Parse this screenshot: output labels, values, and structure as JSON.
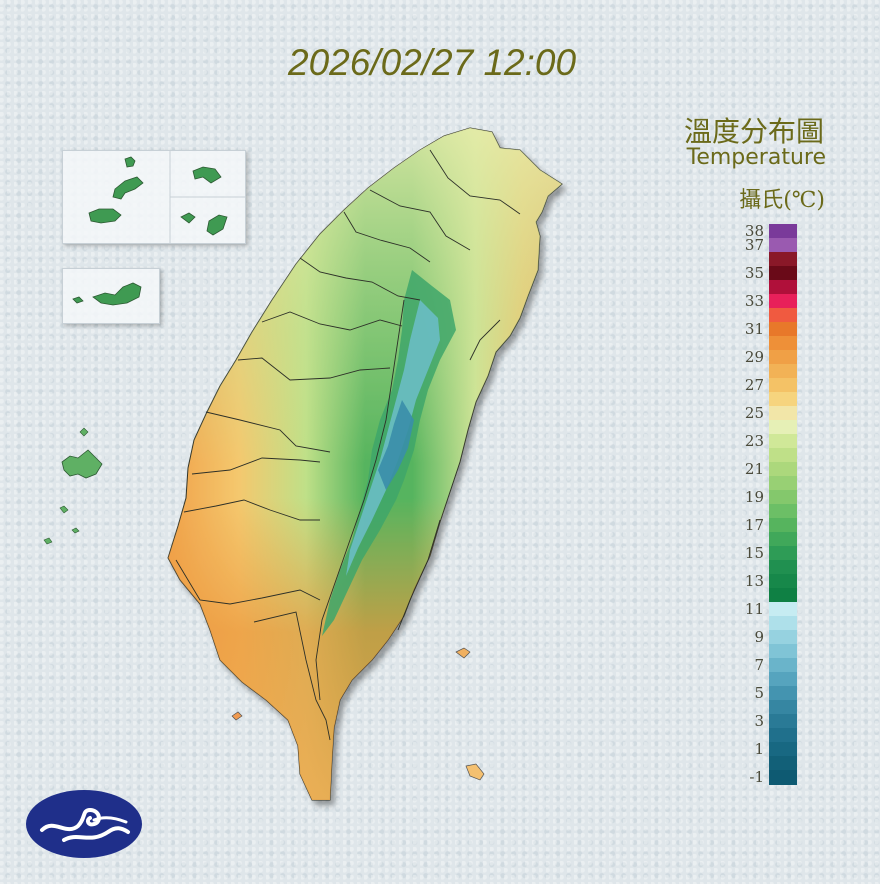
{
  "datetime": "2026/02/27 12:00",
  "legend": {
    "title_zh": "溫度分布圖",
    "title_en": "Temperature",
    "unit": "攝氏(℃)",
    "scale": [
      {
        "value": "38",
        "color": "#7a3a9a"
      },
      {
        "value": "37",
        "color": "#9a5ab0"
      },
      {
        "value": "",
        "color": "#8a1828"
      },
      {
        "value": "35",
        "color": "#6a0a18"
      },
      {
        "value": "",
        "color": "#b0103a"
      },
      {
        "value": "33",
        "color": "#e8205a"
      },
      {
        "value": "",
        "color": "#f05a40"
      },
      {
        "value": "31",
        "color": "#e8782a"
      },
      {
        "value": "",
        "color": "#ee9038"
      },
      {
        "value": "29",
        "color": "#f0a046"
      },
      {
        "value": "",
        "color": "#f2b256"
      },
      {
        "value": "27",
        "color": "#f4c266"
      },
      {
        "value": "",
        "color": "#f6d47e"
      },
      {
        "value": "25",
        "color": "#f2e6a8"
      },
      {
        "value": "",
        "color": "#e6f0b6"
      },
      {
        "value": "23",
        "color": "#d0e898"
      },
      {
        "value": "",
        "color": "#bfe088"
      },
      {
        "value": "21",
        "color": "#acd87c"
      },
      {
        "value": "",
        "color": "#98d074"
      },
      {
        "value": "19",
        "color": "#84c86c"
      },
      {
        "value": "",
        "color": "#6cbf66"
      },
      {
        "value": "17",
        "color": "#56b45e"
      },
      {
        "value": "",
        "color": "#40a85a"
      },
      {
        "value": "15",
        "color": "#2e9c56"
      },
      {
        "value": "",
        "color": "#209050"
      },
      {
        "value": "13",
        "color": "#17884a"
      },
      {
        "value": "",
        "color": "#0f8044"
      },
      {
        "value": "11",
        "color": "#c6ecf2"
      },
      {
        "value": "",
        "color": "#aee0ea"
      },
      {
        "value": "9",
        "color": "#96d2e0"
      },
      {
        "value": "",
        "color": "#80c4d6"
      },
      {
        "value": "7",
        "color": "#6ab4ca"
      },
      {
        "value": "",
        "color": "#56a4be"
      },
      {
        "value": "5",
        "color": "#4494b0"
      },
      {
        "value": "",
        "color": "#3686a2"
      },
      {
        "value": "3",
        "color": "#2a7a96"
      },
      {
        "value": "",
        "color": "#20708c"
      },
      {
        "value": "1",
        "color": "#186882"
      },
      {
        "value": "",
        "color": "#126078"
      },
      {
        "value": "-1",
        "color": "#0e5a72"
      }
    ]
  },
  "colors": {
    "title": "#6b6a1a",
    "logo": "#1f2f8a"
  },
  "icons": {
    "logo": "cwa-cloud-logo-icon"
  }
}
